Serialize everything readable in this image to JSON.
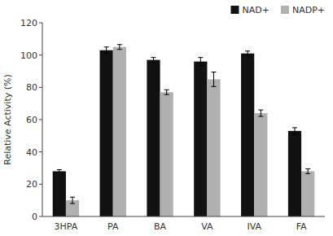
{
  "chart_data": {
    "type": "bar",
    "categories": [
      "3HPA",
      "PA",
      "BA",
      "VA",
      "IVA",
      "FA"
    ],
    "series": [
      {
        "name": "NAD+",
        "color": "#111111",
        "values": [
          28,
          103,
          97,
          96,
          101,
          53
        ],
        "errors": [
          1.0,
          2.0,
          1.5,
          2.5,
          1.5,
          2.0
        ]
      },
      {
        "name": "NADP+",
        "color": "#b0b0b0",
        "values": [
          10,
          105,
          77,
          85,
          64,
          28
        ],
        "errors": [
          2.0,
          1.5,
          1.5,
          4.5,
          2.0,
          1.5
        ]
      }
    ],
    "ylabel": "Relative Activity (%)",
    "ylim": [
      0,
      120
    ],
    "yticks": [
      0,
      20,
      40,
      60,
      80,
      100,
      120
    ],
    "legend": "upper right",
    "grid": false
  }
}
